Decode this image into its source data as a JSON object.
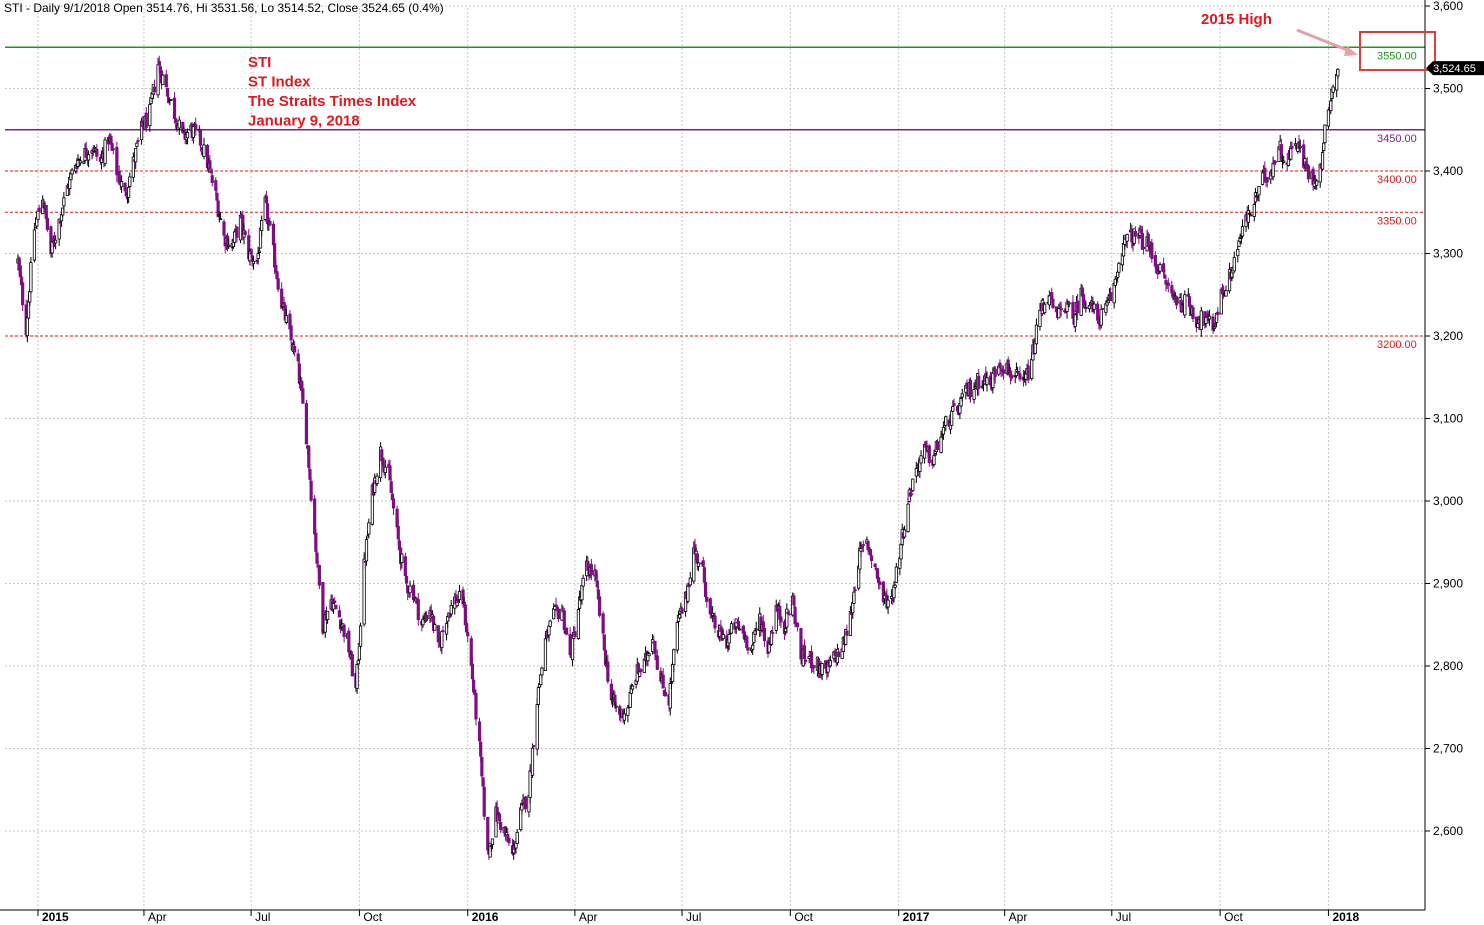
{
  "header": {
    "text": "STI - Daily 9/1/2018 Open 3514.76, Hi 3531.56, Lo 3514.52, Close 3524.65 (0.4%)"
  },
  "annotations": {
    "title_lines": [
      "STI",
      "ST Index",
      "The Straits Times Index",
      "January 9, 2018"
    ],
    "high_label": "2015 High"
  },
  "last_price": "3,524.65",
  "colors": {
    "up": "#000000",
    "down": "#7d0f82",
    "resistance_high": "#1a9a1a",
    "level_3450": "#7d1f8c",
    "dashed_levels": "#e0191e",
    "annotation": "#e0191e",
    "box": "#e03c3c"
  },
  "chart_data": {
    "type": "candlestick",
    "ylim": [
      2500,
      3600
    ],
    "yticks": [
      {
        "value": 3600,
        "label": "3,600"
      },
      {
        "value": 3500,
        "label": "3,500"
      },
      {
        "value": 3400,
        "label": "3,400"
      },
      {
        "value": 3300,
        "label": "3,300"
      },
      {
        "value": 3200,
        "label": "3,200"
      },
      {
        "value": 3100,
        "label": "3,100"
      },
      {
        "value": 3000,
        "label": "3,000"
      },
      {
        "value": 2900,
        "label": "2,900"
      },
      {
        "value": 2800,
        "label": "2,800"
      },
      {
        "value": 2700,
        "label": "2,700"
      },
      {
        "value": 2600,
        "label": "2,600"
      }
    ],
    "xrange": [
      "2014-12-10",
      "2018-03-20"
    ],
    "xticks": [
      {
        "date": "2015-01-01",
        "label": "2015",
        "bold": true
      },
      {
        "date": "2015-04-01",
        "label": "Apr",
        "bold": false
      },
      {
        "date": "2015-07-01",
        "label": "Jul",
        "bold": false
      },
      {
        "date": "2015-10-01",
        "label": "Oct",
        "bold": false
      },
      {
        "date": "2016-01-01",
        "label": "2016",
        "bold": true
      },
      {
        "date": "2016-04-01",
        "label": "Apr",
        "bold": false
      },
      {
        "date": "2016-07-01",
        "label": "Jul",
        "bold": false
      },
      {
        "date": "2016-10-01",
        "label": "Oct",
        "bold": false
      },
      {
        "date": "2017-01-01",
        "label": "2017",
        "bold": true
      },
      {
        "date": "2017-04-01",
        "label": "Apr",
        "bold": false
      },
      {
        "date": "2017-07-01",
        "label": "Jul",
        "bold": false
      },
      {
        "date": "2017-10-01",
        "label": "Oct",
        "bold": false
      },
      {
        "date": "2018-01-01",
        "label": "2018",
        "bold": true
      }
    ],
    "levels": [
      {
        "value": 3550,
        "label": "3550.00",
        "style": "solid",
        "color": "#1a9a1a"
      },
      {
        "value": 3450,
        "label": "3450.00",
        "style": "solid",
        "color": "#7d1f8c"
      },
      {
        "value": 3400,
        "label": "3400.00",
        "style": "dashed",
        "color": "#e0191e"
      },
      {
        "value": 3350,
        "label": "3350.00",
        "style": "dashed",
        "color": "#e0191e"
      },
      {
        "value": 3200,
        "label": "3200.00",
        "style": "dashed",
        "color": "#e0191e"
      }
    ],
    "close_path": [
      [
        "2014-12-15",
        3290
      ],
      [
        "2014-12-22",
        3210
      ],
      [
        "2014-12-29",
        3330
      ],
      [
        "2015-01-05",
        3370
      ],
      [
        "2015-01-12",
        3300
      ],
      [
        "2015-01-19",
        3340
      ],
      [
        "2015-01-26",
        3380
      ],
      [
        "2015-02-02",
        3410
      ],
      [
        "2015-02-09",
        3420
      ],
      [
        "2015-02-16",
        3430
      ],
      [
        "2015-02-23",
        3410
      ],
      [
        "2015-03-02",
        3440
      ],
      [
        "2015-03-09",
        3400
      ],
      [
        "2015-03-16",
        3370
      ],
      [
        "2015-03-23",
        3410
      ],
      [
        "2015-03-30",
        3450
      ],
      [
        "2015-04-06",
        3470
      ],
      [
        "2015-04-13",
        3530
      ],
      [
        "2015-04-20",
        3500
      ],
      [
        "2015-04-27",
        3470
      ],
      [
        "2015-05-04",
        3440
      ],
      [
        "2015-05-11",
        3450
      ],
      [
        "2015-05-18",
        3440
      ],
      [
        "2015-05-25",
        3410
      ],
      [
        "2015-06-01",
        3370
      ],
      [
        "2015-06-08",
        3320
      ],
      [
        "2015-06-15",
        3310
      ],
      [
        "2015-06-22",
        3340
      ],
      [
        "2015-06-29",
        3300
      ],
      [
        "2015-07-06",
        3290
      ],
      [
        "2015-07-13",
        3360
      ],
      [
        "2015-07-20",
        3300
      ],
      [
        "2015-07-27",
        3240
      ],
      [
        "2015-08-03",
        3200
      ],
      [
        "2015-08-10",
        3160
      ],
      [
        "2015-08-17",
        3080
      ],
      [
        "2015-08-24",
        2960
      ],
      [
        "2015-08-31",
        2850
      ],
      [
        "2015-09-07",
        2880
      ],
      [
        "2015-09-14",
        2860
      ],
      [
        "2015-09-21",
        2830
      ],
      [
        "2015-09-28",
        2770
      ],
      [
        "2015-10-05",
        2920
      ],
      [
        "2015-10-12",
        3010
      ],
      [
        "2015-10-19",
        3060
      ],
      [
        "2015-10-26",
        3030
      ],
      [
        "2015-11-02",
        2960
      ],
      [
        "2015-11-09",
        2900
      ],
      [
        "2015-11-16",
        2890
      ],
      [
        "2015-11-23",
        2850
      ],
      [
        "2015-11-30",
        2870
      ],
      [
        "2015-12-07",
        2820
      ],
      [
        "2015-12-14",
        2860
      ],
      [
        "2015-12-21",
        2880
      ],
      [
        "2015-12-28",
        2880
      ],
      [
        "2016-01-04",
        2800
      ],
      [
        "2016-01-11",
        2700
      ],
      [
        "2016-01-18",
        2570
      ],
      [
        "2016-01-25",
        2620
      ],
      [
        "2016-02-01",
        2600
      ],
      [
        "2016-02-08",
        2570
      ],
      [
        "2016-02-15",
        2620
      ],
      [
        "2016-02-22",
        2650
      ],
      [
        "2016-02-29",
        2760
      ],
      [
        "2016-03-07",
        2830
      ],
      [
        "2016-03-14",
        2860
      ],
      [
        "2016-03-21",
        2870
      ],
      [
        "2016-03-28",
        2810
      ],
      [
        "2016-04-04",
        2870
      ],
      [
        "2016-04-11",
        2920
      ],
      [
        "2016-04-18",
        2910
      ],
      [
        "2016-04-25",
        2830
      ],
      [
        "2016-05-02",
        2760
      ],
      [
        "2016-05-09",
        2740
      ],
      [
        "2016-05-16",
        2750
      ],
      [
        "2016-05-23",
        2790
      ],
      [
        "2016-05-30",
        2800
      ],
      [
        "2016-06-06",
        2840
      ],
      [
        "2016-06-13",
        2780
      ],
      [
        "2016-06-20",
        2760
      ],
      [
        "2016-06-27",
        2850
      ],
      [
        "2016-07-04",
        2880
      ],
      [
        "2016-07-11",
        2940
      ],
      [
        "2016-07-18",
        2920
      ],
      [
        "2016-07-25",
        2860
      ],
      [
        "2016-08-01",
        2840
      ],
      [
        "2016-08-08",
        2830
      ],
      [
        "2016-08-15",
        2850
      ],
      [
        "2016-08-22",
        2840
      ],
      [
        "2016-08-29",
        2820
      ],
      [
        "2016-09-05",
        2860
      ],
      [
        "2016-09-12",
        2820
      ],
      [
        "2016-09-19",
        2870
      ],
      [
        "2016-09-26",
        2850
      ],
      [
        "2016-10-03",
        2880
      ],
      [
        "2016-10-10",
        2810
      ],
      [
        "2016-10-17",
        2810
      ],
      [
        "2016-10-24",
        2800
      ],
      [
        "2016-10-31",
        2790
      ],
      [
        "2016-11-07",
        2810
      ],
      [
        "2016-11-14",
        2820
      ],
      [
        "2016-11-21",
        2860
      ],
      [
        "2016-11-28",
        2930
      ],
      [
        "2016-12-05",
        2950
      ],
      [
        "2016-12-12",
        2920
      ],
      [
        "2016-12-19",
        2880
      ],
      [
        "2016-12-26",
        2880
      ],
      [
        "2017-01-02",
        2940
      ],
      [
        "2017-01-09",
        3000
      ],
      [
        "2017-01-16",
        3040
      ],
      [
        "2017-01-23",
        3060
      ],
      [
        "2017-01-30",
        3050
      ],
      [
        "2017-02-06",
        3080
      ],
      [
        "2017-02-13",
        3100
      ],
      [
        "2017-02-20",
        3110
      ],
      [
        "2017-02-27",
        3130
      ],
      [
        "2017-03-06",
        3140
      ],
      [
        "2017-03-13",
        3150
      ],
      [
        "2017-03-20",
        3140
      ],
      [
        "2017-03-27",
        3170
      ],
      [
        "2017-04-03",
        3160
      ],
      [
        "2017-04-10",
        3150
      ],
      [
        "2017-04-17",
        3140
      ],
      [
        "2017-04-24",
        3170
      ],
      [
        "2017-05-01",
        3230
      ],
      [
        "2017-05-08",
        3250
      ],
      [
        "2017-05-15",
        3220
      ],
      [
        "2017-05-22",
        3240
      ],
      [
        "2017-05-29",
        3220
      ],
      [
        "2017-06-05",
        3250
      ],
      [
        "2017-06-12",
        3240
      ],
      [
        "2017-06-19",
        3220
      ],
      [
        "2017-06-26",
        3230
      ],
      [
        "2017-07-03",
        3260
      ],
      [
        "2017-07-10",
        3310
      ],
      [
        "2017-07-17",
        3320
      ],
      [
        "2017-07-24",
        3320
      ],
      [
        "2017-07-31",
        3310
      ],
      [
        "2017-08-07",
        3290
      ],
      [
        "2017-08-14",
        3270
      ],
      [
        "2017-08-21",
        3250
      ],
      [
        "2017-08-28",
        3240
      ],
      [
        "2017-09-04",
        3240
      ],
      [
        "2017-09-11",
        3220
      ],
      [
        "2017-09-18",
        3220
      ],
      [
        "2017-09-25",
        3210
      ],
      [
        "2017-10-02",
        3250
      ],
      [
        "2017-10-09",
        3270
      ],
      [
        "2017-10-16",
        3310
      ],
      [
        "2017-10-23",
        3340
      ],
      [
        "2017-10-30",
        3360
      ],
      [
        "2017-11-06",
        3390
      ],
      [
        "2017-11-13",
        3400
      ],
      [
        "2017-11-20",
        3430
      ],
      [
        "2017-11-27",
        3410
      ],
      [
        "2017-12-04",
        3440
      ],
      [
        "2017-12-11",
        3410
      ],
      [
        "2017-12-18",
        3390
      ],
      [
        "2017-12-25",
        3400
      ],
      [
        "2018-01-01",
        3480
      ],
      [
        "2018-01-09",
        3525
      ]
    ]
  }
}
